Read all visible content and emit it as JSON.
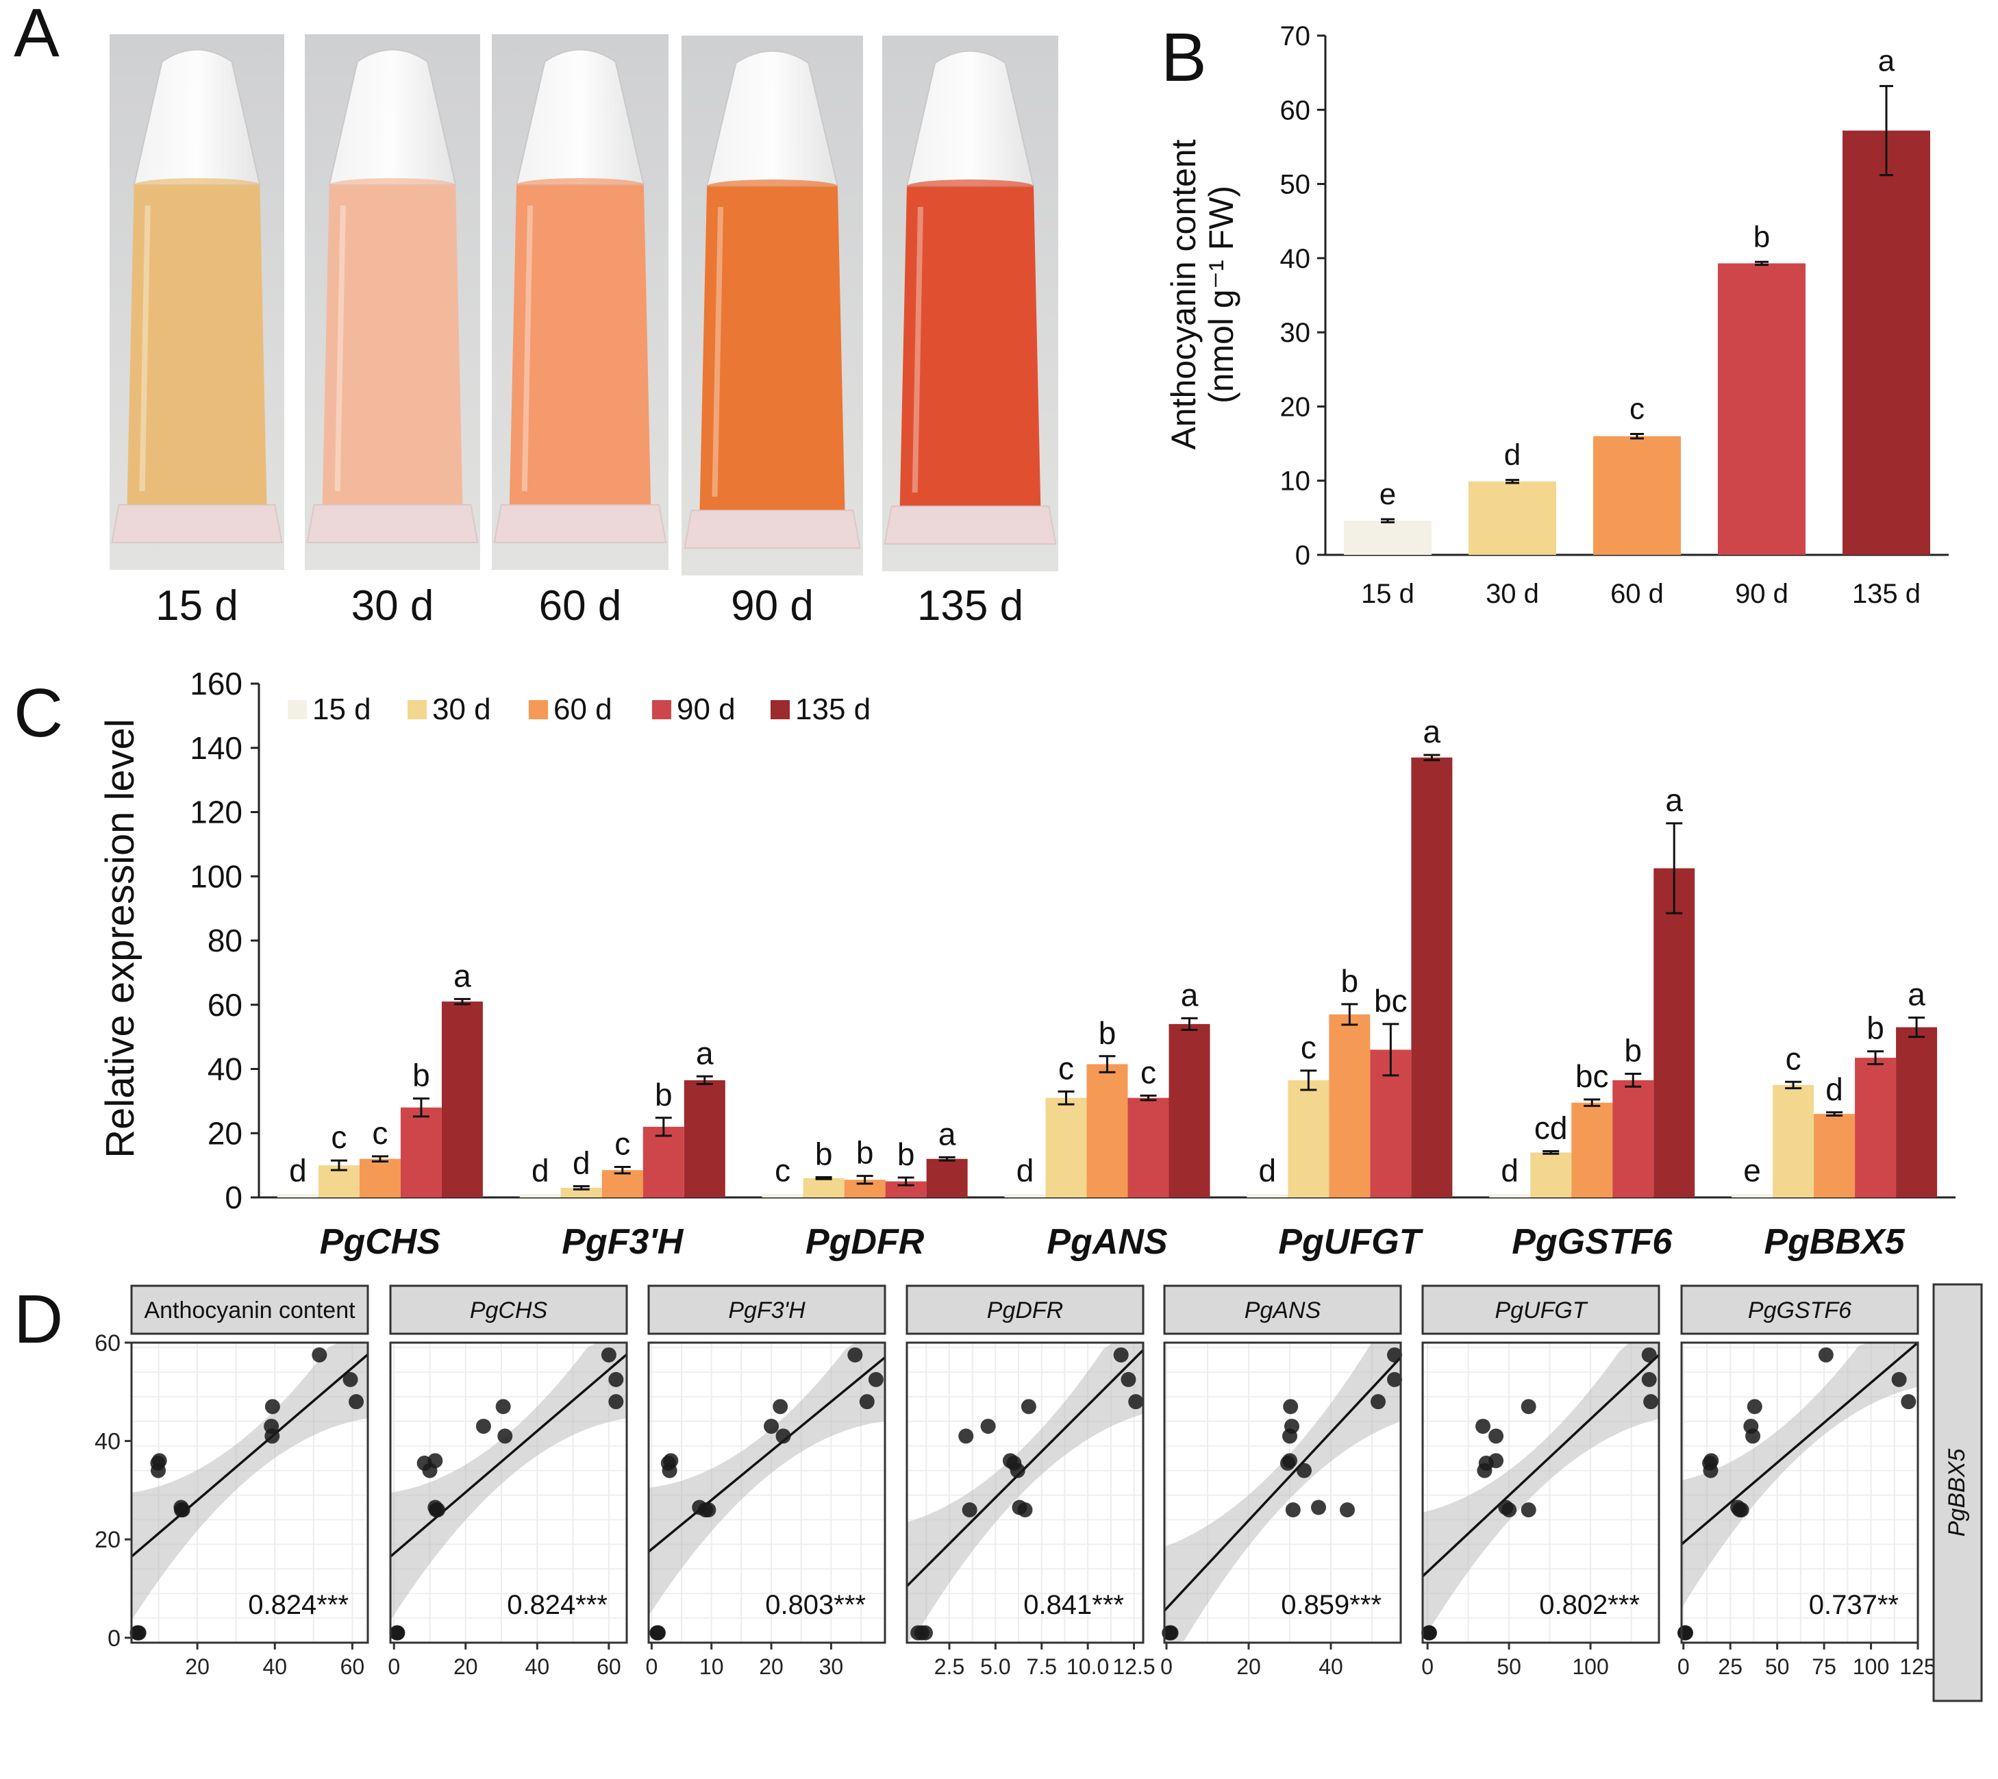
{
  "colors": {
    "d15": "#f3f1e5",
    "d30": "#f3d78f",
    "d60": "#f59a54",
    "d90": "#cf464a",
    "d135": "#9d2a2d"
  },
  "panelA": {
    "label": "A",
    "tubes": [
      {
        "label": "15 d",
        "liquid": "#e9bd79"
      },
      {
        "label": "30 d",
        "liquid": "#f3b99c"
      },
      {
        "label": "60 d",
        "liquid": "#f49a6d"
      },
      {
        "label": "90 d",
        "liquid": "#ea7733"
      },
      {
        "label": "135 d",
        "liquid": "#e05030"
      }
    ]
  },
  "chart_data": [
    {
      "panel": "B",
      "type": "bar",
      "label": "B",
      "ylabel_line1": "Anthocyanin content",
      "ylabel_line2": "(nmol g⁻¹ FW)",
      "ylim": [
        0,
        70
      ],
      "yticks": [
        "0",
        "10",
        "20",
        "30",
        "40",
        "50",
        "60",
        "70"
      ],
      "categories": [
        "15 d",
        "30 d",
        "60 d",
        "90 d",
        "135 d"
      ],
      "values": [
        4.6,
        9.9,
        16.0,
        39.3,
        57.2
      ],
      "errors": [
        0.2,
        0.2,
        0.3,
        0.2,
        6.0
      ],
      "letters": [
        "e",
        "d",
        "c",
        "b",
        "a"
      ]
    },
    {
      "panel": "C",
      "type": "bar",
      "label": "C",
      "ylabel": "Relative expression level",
      "ylim": [
        0,
        160
      ],
      "yticks": [
        "0",
        "20",
        "40",
        "60",
        "80",
        "100",
        "120",
        "140",
        "160"
      ],
      "legend": [
        "15 d",
        "30 d",
        "60 d",
        "90 d",
        "135 d"
      ],
      "genes": [
        "PgCHS",
        "PgF3'H",
        "PgDFR",
        "PgANS",
        "PgUFGT",
        "PgGSTF6",
        "PgBBX5"
      ],
      "values": [
        [
          1,
          10,
          12,
          28,
          61
        ],
        [
          1,
          3,
          8.5,
          22,
          36.5
        ],
        [
          1,
          6,
          5.5,
          5,
          12
        ],
        [
          1,
          31,
          41.5,
          31,
          54
        ],
        [
          1,
          36.5,
          57,
          46,
          137
        ],
        [
          1,
          14,
          29.5,
          36.5,
          102.5
        ],
        [
          1,
          35,
          26,
          43.5,
          53
        ]
      ],
      "errors": [
        [
          0.2,
          1.5,
          0.8,
          2.8,
          0.8
        ],
        [
          0.2,
          0.5,
          1,
          2.8,
          1.2
        ],
        [
          0.2,
          0.3,
          1.2,
          1.2,
          0.5
        ],
        [
          0.2,
          2,
          2.5,
          0.7,
          1.8
        ],
        [
          0.2,
          3,
          3.2,
          8,
          0.8
        ],
        [
          0.2,
          0.4,
          1,
          2,
          14
        ],
        [
          0.2,
          1,
          0.5,
          2,
          3
        ]
      ],
      "letters": [
        [
          "d",
          "c",
          "c",
          "b",
          "a"
        ],
        [
          "d",
          "d",
          "c",
          "b",
          "a"
        ],
        [
          "c",
          "b",
          "b",
          "b",
          "a"
        ],
        [
          "d",
          "c",
          "b",
          "c",
          "a"
        ],
        [
          "d",
          "c",
          "b",
          "bc",
          "a"
        ],
        [
          "d",
          "cd",
          "bc",
          "b",
          "a"
        ],
        [
          "e",
          "c",
          "d",
          "b",
          "a"
        ]
      ]
    },
    {
      "panel": "D",
      "type": "scatter",
      "label": "D",
      "row_strip": "PgBBX5",
      "y": [
        1,
        1,
        1,
        35.5,
        34,
        36,
        26.5,
        26,
        26,
        43,
        41,
        47,
        57.5,
        52.5,
        48
      ],
      "ylim": [
        -1,
        60
      ],
      "yticks": [
        0,
        20,
        40,
        60
      ],
      "panels": [
        {
          "title": "Anthocyanin content",
          "italic": false,
          "x": [
            4.5,
            4.7,
            4.9,
            9.8,
            9.9,
            10.2,
            15.8,
            15.9,
            16.2,
            39.1,
            39.3,
            39.4,
            51.5,
            59.5,
            61
          ],
          "xlim": [
            3,
            64
          ],
          "xticks": [
            20,
            40,
            60
          ],
          "xtick_labels": [
            "20",
            "40",
            "60"
          ],
          "fit": [
            16.5,
            57.6
          ],
          "r": "0.824***"
        },
        {
          "title": "PgCHS",
          "italic": true,
          "x": [
            0.8,
            0.9,
            1,
            8.5,
            10,
            11.5,
            11.5,
            11.8,
            12.2,
            25,
            31,
            30.5,
            60,
            62,
            62
          ],
          "xlim": [
            -1,
            65
          ],
          "xticks": [
            0,
            20,
            40,
            60
          ],
          "xtick_labels": [
            "0",
            "20",
            "40",
            "60"
          ],
          "fit": [
            16.5,
            57.6
          ],
          "r": "0.824***"
        },
        {
          "title": "PgF3'H",
          "italic": true,
          "x": [
            0.9,
            1,
            1.1,
            2.8,
            3,
            3.2,
            8,
            9,
            9.5,
            20,
            22,
            21.5,
            34,
            37.5,
            36
          ],
          "xlim": [
            -0.5,
            39
          ],
          "xticks": [
            0,
            10,
            20,
            30
          ],
          "xtick_labels": [
            "0",
            "10",
            "20",
            "30"
          ],
          "fit": [
            17.5,
            57
          ],
          "r": "0.803***"
        },
        {
          "title": "PgDFR",
          "italic": true,
          "x": [
            0.8,
            1,
            1.2,
            6,
            6.2,
            5.8,
            6.3,
            6.6,
            3.6,
            4.6,
            3.4,
            6.8,
            11.8,
            12.2,
            12.6
          ],
          "xlim": [
            0.2,
            13
          ],
          "xticks": [
            2.5,
            5,
            7.5,
            10,
            12.5
          ],
          "xtick_labels": [
            "2.5",
            "5.0",
            "7.5",
            "10.0",
            "12.5"
          ],
          "fit": [
            10.5,
            58.5
          ],
          "r": "0.841***"
        },
        {
          "title": "PgANS",
          "italic": true,
          "x": [
            0.7,
            0.9,
            1.1,
            29.5,
            33.5,
            30,
            37,
            44,
            30.8,
            30.5,
            30,
            30.2,
            55.5,
            55.5,
            51.5
          ],
          "xlim": [
            -0.5,
            57
          ],
          "xticks": [
            0,
            20,
            40
          ],
          "xtick_labels": [
            "0",
            "20",
            "40"
          ],
          "fit": [
            5.5,
            57
          ],
          "r": "0.859***"
        },
        {
          "title": "PgUFGT",
          "italic": true,
          "x": [
            0.8,
            1,
            1.2,
            36,
            35,
            42,
            48,
            50,
            62,
            34,
            42,
            62,
            136,
            136,
            137
          ],
          "xlim": [
            -3,
            142
          ],
          "xticks": [
            0,
            50,
            100
          ],
          "xtick_labels": [
            "0",
            "50",
            "100"
          ],
          "fit": [
            12.5,
            57.5
          ],
          "r": "0.802***"
        },
        {
          "title": "PgGSTF6",
          "italic": true,
          "x": [
            0.8,
            1,
            1.2,
            14,
            14.5,
            14.8,
            29,
            30,
            31,
            36,
            37,
            38,
            76,
            115,
            120
          ],
          "xlim": [
            -1,
            125
          ],
          "xticks": [
            0,
            25,
            50,
            75,
            100,
            125
          ],
          "xtick_labels": [
            "0",
            "25",
            "50",
            "75",
            "100",
            "125"
          ],
          "fit": [
            19,
            64
          ],
          "r": "0.737**"
        }
      ]
    }
  ]
}
